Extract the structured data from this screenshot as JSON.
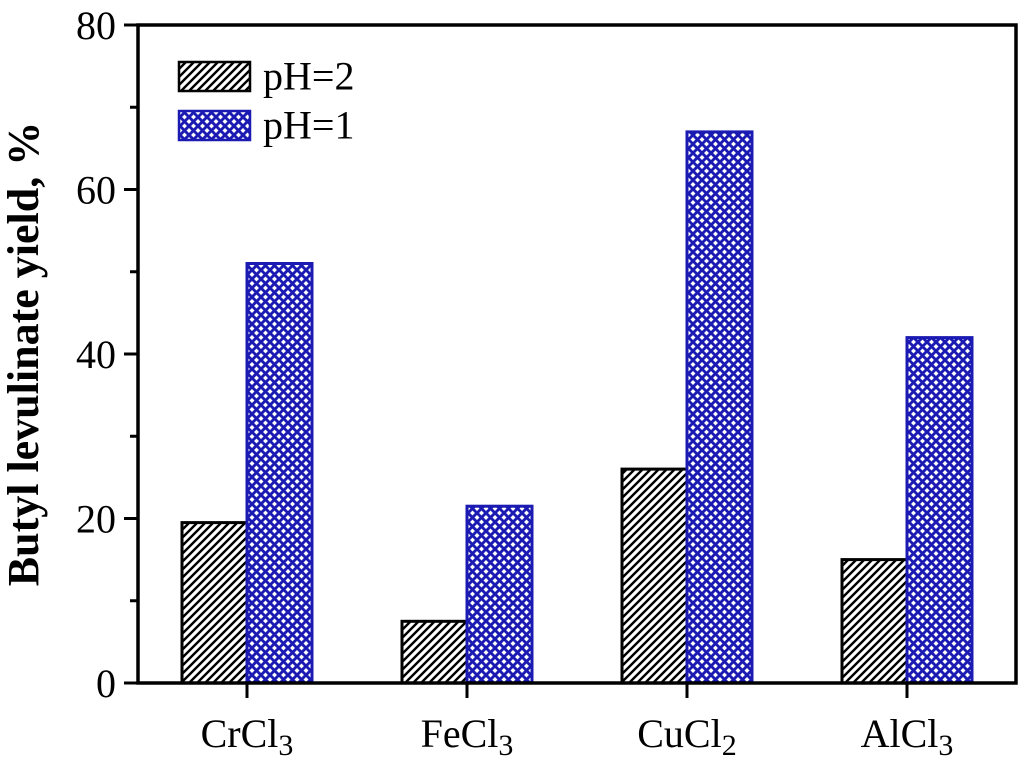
{
  "figure": {
    "background": "#ffffff",
    "frame_color": "#000000"
  },
  "chart_data": {
    "type": "bar",
    "title": "",
    "xlabel": "",
    "ylabel": "Butyl levulinate yield, %",
    "categories": [
      "CrCl3",
      "FeCl3",
      "CuCl2",
      "AlCl3"
    ],
    "categories_rich": [
      {
        "base": "CrCl",
        "sub": "3"
      },
      {
        "base": "FeCl",
        "sub": "3"
      },
      {
        "base": "CuCl",
        "sub": "2"
      },
      {
        "base": "AlCl",
        "sub": "3"
      }
    ],
    "series": [
      {
        "name": "pH=2",
        "values": [
          19.5,
          7.5,
          26,
          15
        ],
        "pattern": "diagonal-hatch",
        "color": "#000000"
      },
      {
        "name": "pH=1",
        "values": [
          51,
          21.5,
          67,
          42
        ],
        "pattern": "crosshatch",
        "color": "#1b1bb3"
      }
    ],
    "ylim": [
      0,
      80
    ],
    "y_major_ticks": [
      0,
      20,
      40,
      60,
      80
    ],
    "y_minor_ticks": [
      10,
      30,
      50,
      70
    ],
    "grid": false,
    "legend_position": "top-left",
    "legend_entries": [
      "pH=2",
      "pH=1"
    ]
  }
}
